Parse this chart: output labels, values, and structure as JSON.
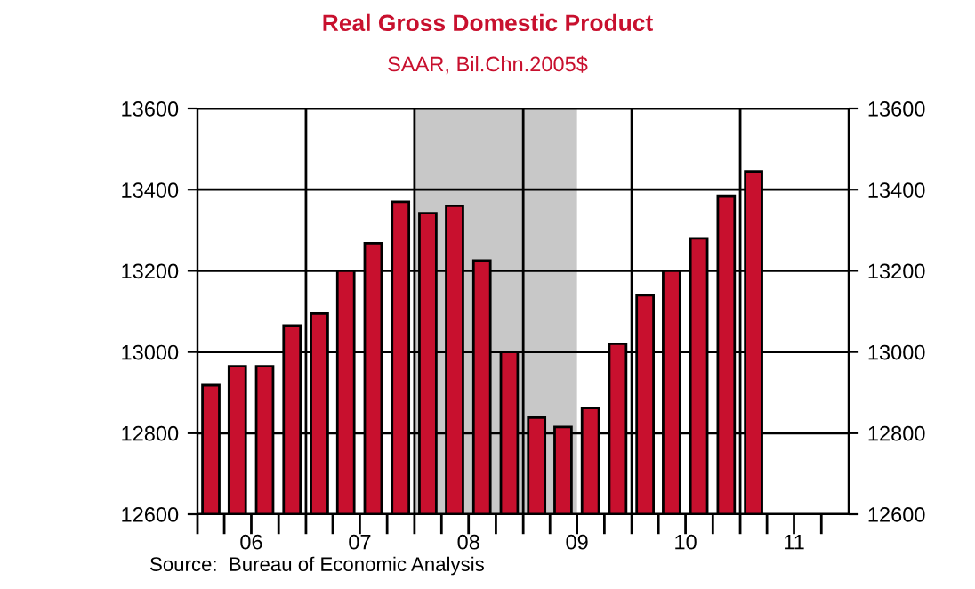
{
  "chart_data": {
    "type": "bar",
    "title": "Real Gross Domestic Product",
    "subtitle": "SAAR, Bil.Chn.2005$",
    "x": [
      "2006-02-15",
      "2006-05-15",
      "2006-08-15",
      "2006-11-15",
      "2007-02-15",
      "2007-05-15",
      "2007-08-15",
      "2007-11-15",
      "2008-02-15",
      "2008-05-15",
      "2008-08-15",
      "2008-11-15",
      "2009-02-15",
      "2009-05-15",
      "2009-08-15",
      "2009-11-15",
      "2010-02-15",
      "2010-05-15",
      "2010-08-15",
      "2010-11-15",
      "2011-02-15"
    ],
    "values": [
      12918,
      12965,
      12965,
      13065,
      13095,
      13200,
      13268,
      13370,
      13342,
      13360,
      13225,
      13000,
      12838,
      12815,
      12862,
      13020,
      13140,
      13200,
      13280,
      13385,
      13445
    ],
    "color": "#c8102e",
    "ylim": [
      12600,
      13600
    ],
    "yticks": [
      12600,
      12800,
      13000,
      13200,
      13400,
      13600
    ],
    "y2lim": [
      12600,
      13600
    ],
    "y2ticks": [
      12600,
      12800,
      13000,
      13200,
      13400,
      13600
    ],
    "xlim": [
      "2006-01-01",
      "2012-01-01"
    ],
    "xticks": [
      {
        "value": "2006-01-01",
        "label": null
      },
      {
        "value": "2006-04-01",
        "label": null
      },
      {
        "value": "2006-07-01",
        "label": "06"
      },
      {
        "value": "2006-10-01",
        "label": null
      },
      {
        "value": "2007-01-01",
        "label": null
      },
      {
        "value": "2007-04-01",
        "label": null
      },
      {
        "value": "2007-07-01",
        "label": "07"
      },
      {
        "value": "2007-10-01",
        "label": null
      },
      {
        "value": "2008-01-01",
        "label": null
      },
      {
        "value": "2008-04-01",
        "label": null
      },
      {
        "value": "2008-07-01",
        "label": "08"
      },
      {
        "value": "2008-10-01",
        "label": null
      },
      {
        "value": "2009-01-01",
        "label": null
      },
      {
        "value": "2009-04-01",
        "label": null
      },
      {
        "value": "2009-07-01",
        "label": "09"
      },
      {
        "value": "2009-10-01",
        "label": null
      },
      {
        "value": "2010-01-01",
        "label": null
      },
      {
        "value": "2010-04-01",
        "label": null
      },
      {
        "value": "2010-07-01",
        "label": "10"
      },
      {
        "value": "2010-10-01",
        "label": null
      },
      {
        "value": "2011-01-01",
        "label": null
      },
      {
        "value": "2011-04-01",
        "label": null
      },
      {
        "value": "2011-07-01",
        "label": "11"
      },
      {
        "value": "2011-10-01",
        "label": null
      }
    ],
    "grid": "y",
    "ref_lines": [
      {
        "axis": "x",
        "value": "2007-01-01",
        "color": "#000000"
      },
      {
        "axis": "x",
        "value": "2008-01-01",
        "color": "#000000"
      },
      {
        "axis": "x",
        "value": "2009-01-01",
        "color": "#000000"
      },
      {
        "axis": "x",
        "value": "2010-01-01",
        "color": "#000000"
      },
      {
        "axis": "x",
        "value": "2011-01-01",
        "color": "#000000"
      }
    ],
    "bands": [
      {
        "axis": "x",
        "from": "2008-01-01",
        "to": "2009-07-01",
        "color": "#c8c8c8"
      }
    ],
    "annotations": [
      "Source:  Bureau of Economic Analysis"
    ]
  }
}
